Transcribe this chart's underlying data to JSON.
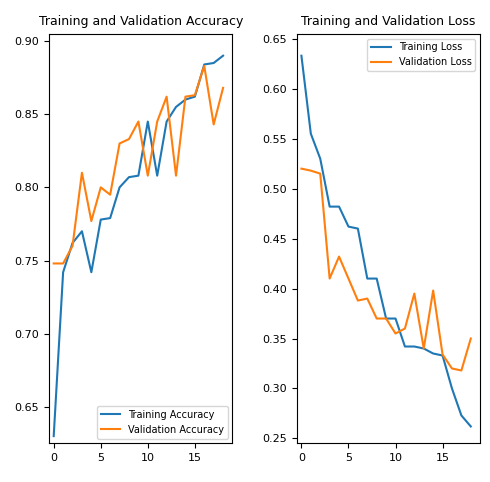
{
  "train_acc": [
    0.63,
    0.742,
    0.762,
    0.77,
    0.742,
    0.778,
    0.779,
    0.8,
    0.807,
    0.808,
    0.845,
    0.808,
    0.845,
    0.855,
    0.86,
    0.862,
    0.884,
    0.885,
    0.89
  ],
  "val_acc": [
    0.748,
    0.748,
    0.76,
    0.81,
    0.777,
    0.8,
    0.795,
    0.83,
    0.833,
    0.845,
    0.808,
    0.845,
    0.862,
    0.808,
    0.862,
    0.863,
    0.883,
    0.843,
    0.868
  ],
  "train_loss": [
    0.633,
    0.555,
    0.53,
    0.482,
    0.482,
    0.462,
    0.46,
    0.41,
    0.41,
    0.37,
    0.37,
    0.342,
    0.342,
    0.34,
    0.335,
    0.333,
    0.3,
    0.273,
    0.262
  ],
  "val_loss": [
    0.52,
    0.518,
    0.515,
    0.41,
    0.432,
    0.41,
    0.388,
    0.39,
    0.37,
    0.37,
    0.355,
    0.36,
    0.395,
    0.34,
    0.398,
    0.334,
    0.32,
    0.318,
    0.35
  ],
  "train_acc_color": "#1f77b4",
  "val_acc_color": "#ff7f0e",
  "train_loss_color": "#1f77b4",
  "val_loss_color": "#ff7f0e",
  "acc_title": "Training and Validation Accuracy",
  "loss_title": "Training and Validation Loss",
  "acc_legend": [
    "Training Accuracy",
    "Validation Accuracy"
  ],
  "loss_legend": [
    "Training Loss",
    "Validation Loss"
  ],
  "acc_ylim": [
    0.625,
    0.905
  ],
  "loss_ylim": [
    0.245,
    0.655
  ],
  "xlim": [
    -0.5,
    19
  ],
  "figsize": [
    4.9,
    4.82
  ],
  "dpi": 100
}
